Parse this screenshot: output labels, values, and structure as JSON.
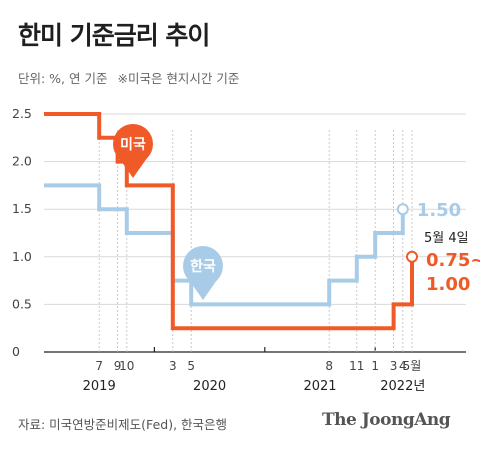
{
  "title": "한미 기준금리 추이",
  "subtitle": {
    "unit": "단위: %, 연 기준",
    "note": "※미국은 현지시간 기준"
  },
  "source": "자료: 미국연방준비제도(Fed), 한국은행",
  "logo": "The JoongAng",
  "colors": {
    "us": "#f05a28",
    "korea": "#a8cce8",
    "grid": "#d9d9d9",
    "axis": "#222222"
  },
  "chart_data": {
    "type": "line",
    "ylim": [
      0,
      2.5
    ],
    "yticks": [
      "0",
      "0.5",
      "1.0",
      "1.5",
      "2.0",
      "2.5"
    ],
    "xticks": [
      {
        "label": "7",
        "t": 2019.5
      },
      {
        "label": "9",
        "t": 2019.6667
      },
      {
        "label": "10",
        "t": 2019.75
      },
      {
        "label": "3",
        "t": 2020.1667
      },
      {
        "label": "5",
        "t": 2020.3333
      },
      {
        "label": "8",
        "t": 2021.5833
      },
      {
        "label": "11",
        "t": 2021.8333
      },
      {
        "label": "1",
        "t": 2022.0
      },
      {
        "label": "3",
        "t": 2022.1667
      },
      {
        "label": "4",
        "t": 2022.25
      },
      {
        "label": "5월",
        "t": 2022.3333
      }
    ],
    "years": [
      {
        "label": "2019",
        "t": 2019.5
      },
      {
        "label": "2020",
        "t": 2020.5
      },
      {
        "label": "2021",
        "t": 2021.5
      },
      {
        "label": "2022년",
        "t": 2022.25
      }
    ],
    "series": [
      {
        "name": "미국",
        "key": "us",
        "points": [
          [
            2019.0,
            2.5
          ],
          [
            2019.5,
            2.25
          ],
          [
            2019.6667,
            2.0
          ],
          [
            2019.75,
            1.75
          ],
          [
            2020.1667,
            0.25
          ],
          [
            2022.1667,
            0.5
          ],
          [
            2022.3333,
            1.0
          ]
        ],
        "end_label": "0.75~\n1.00"
      },
      {
        "name": "한국",
        "key": "korea",
        "points": [
          [
            2019.0,
            1.75
          ],
          [
            2019.5,
            1.5
          ],
          [
            2019.75,
            1.25
          ],
          [
            2020.1667,
            0.75
          ],
          [
            2020.3333,
            0.5
          ],
          [
            2021.5833,
            0.75
          ],
          [
            2021.8333,
            1.0
          ],
          [
            2022.0,
            1.25
          ],
          [
            2022.25,
            1.5
          ]
        ],
        "end_label": "1.50"
      }
    ],
    "annotation": "5월 4일"
  }
}
